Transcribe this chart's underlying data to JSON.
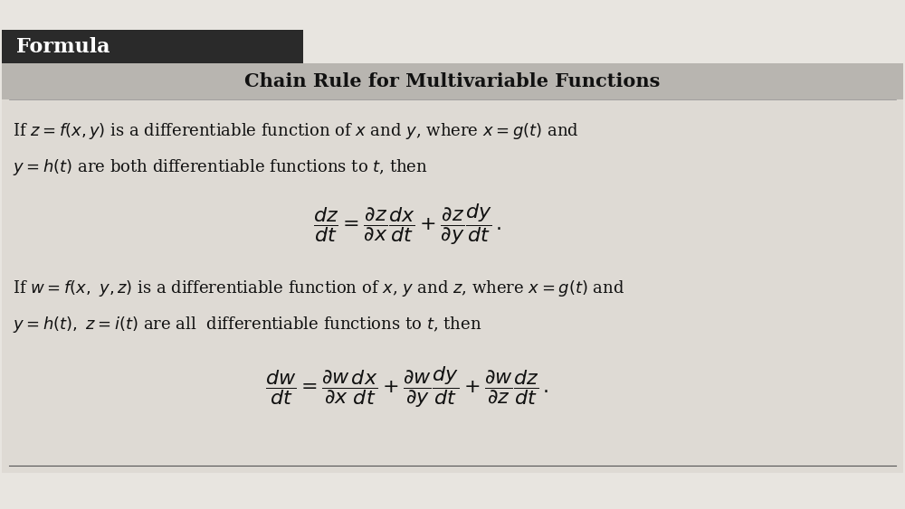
{
  "bg_color": "#e8e5e0",
  "header_bg": "#2a2a2a",
  "header_text": "Formula",
  "header_text_color": "#ffffff",
  "subheader_bg": "#b8b5b0",
  "subheader_text": "Chain Rule for Multivariable Functions",
  "subheader_text_color": "#111111",
  "body_bg": "#dedad4",
  "text_color": "#111111",
  "para1_line1": "If $z = f(x, y)$ is a differentiable function of $x$ and $y$, where $x = g(t)$ and",
  "para1_line2": "$y = h(t)$ are both differentiable functions to $t$, then",
  "formula1": "$\\dfrac{dz}{dt} = \\dfrac{\\partial z}{\\partial x}\\dfrac{dx}{dt} + \\dfrac{\\partial z}{\\partial y}\\dfrac{dy}{dt}\\,.$",
  "para2_line1": "If $w= f(x,\\ y,z)$ is a differentiable function of $x$, $y$ and $z$, where $x = g(t)$ and",
  "para2_line2": "$y = h(t),\\ z = i(t)$ are all  differentiable functions to $t$, then",
  "formula2": "$\\dfrac{dw}{dt} = \\dfrac{\\partial w}{\\partial x}\\dfrac{dx}{dt} + \\dfrac{\\partial w}{\\partial y}\\dfrac{dy}{dt} + \\dfrac{\\partial w}{\\partial z}\\dfrac{dz}{dt}\\,.$",
  "figsize": [
    10.0,
    5.63
  ],
  "dpi": 100
}
